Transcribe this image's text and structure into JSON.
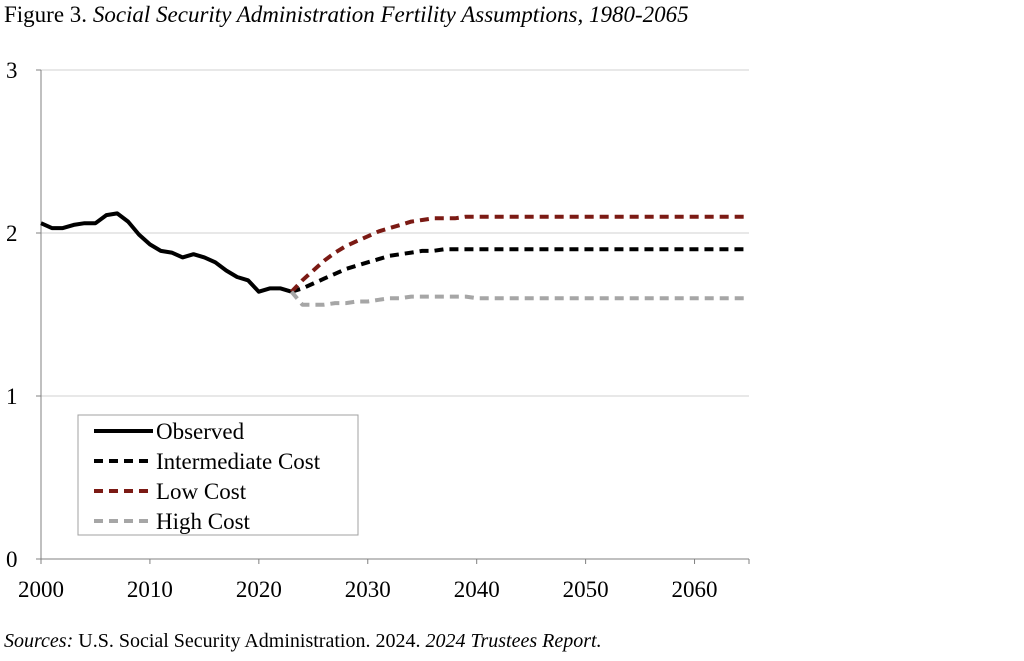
{
  "figure": {
    "label": "Figure 3.",
    "title": "Social Security Administration Fertility Assumptions, 1980-2065"
  },
  "source": {
    "prefix": "Sources:",
    "text": "U.S. Social Security Administration. 2024.",
    "report": "2024 Trustees Report."
  },
  "colors": {
    "observed": "#000000",
    "intermediate": "#000000",
    "low": "#7b1a14",
    "high": "#a6a6a6",
    "grid": "#d0d0d0",
    "axis": "#808080"
  },
  "chart_data": {
    "type": "line",
    "title": "Social Security Administration Fertility Assumptions, 1980-2065",
    "xlabel": "",
    "ylabel": "",
    "xlim": [
      2000,
      2065
    ],
    "ylim": [
      0,
      3
    ],
    "x_ticks": [
      2000,
      2010,
      2020,
      2030,
      2040,
      2050,
      2060
    ],
    "y_ticks": [
      0,
      1,
      2,
      3
    ],
    "grid": true,
    "legend_position": "bottom-left",
    "series": [
      {
        "name": "Observed",
        "style": "solid",
        "color": "#000000",
        "x": [
          2000,
          2001,
          2002,
          2003,
          2004,
          2005,
          2006,
          2007,
          2008,
          2009,
          2010,
          2011,
          2012,
          2013,
          2014,
          2015,
          2016,
          2017,
          2018,
          2019,
          2020,
          2021,
          2022,
          2023
        ],
        "y": [
          2.06,
          2.03,
          2.03,
          2.05,
          2.06,
          2.06,
          2.11,
          2.12,
          2.07,
          1.99,
          1.93,
          1.89,
          1.88,
          1.85,
          1.87,
          1.85,
          1.82,
          1.77,
          1.73,
          1.71,
          1.64,
          1.66,
          1.66,
          1.64
        ]
      },
      {
        "name": "Intermediate Cost",
        "style": "dashed",
        "color": "#000000",
        "x": [
          2023,
          2024,
          2025,
          2026,
          2027,
          2028,
          2029,
          2030,
          2031,
          2032,
          2033,
          2034,
          2035,
          2036,
          2037,
          2038,
          2039,
          2040,
          2045,
          2050,
          2055,
          2060,
          2065
        ],
        "y": [
          1.64,
          1.66,
          1.69,
          1.72,
          1.75,
          1.78,
          1.8,
          1.82,
          1.84,
          1.86,
          1.87,
          1.88,
          1.89,
          1.89,
          1.9,
          1.9,
          1.9,
          1.9,
          1.9,
          1.9,
          1.9,
          1.9,
          1.9
        ]
      },
      {
        "name": "Low Cost",
        "style": "dashed",
        "color": "#7b1a14",
        "x": [
          2023,
          2024,
          2025,
          2026,
          2027,
          2028,
          2029,
          2030,
          2031,
          2032,
          2033,
          2034,
          2035,
          2036,
          2037,
          2038,
          2039,
          2040,
          2045,
          2050,
          2055,
          2060,
          2065
        ],
        "y": [
          1.64,
          1.71,
          1.77,
          1.83,
          1.88,
          1.92,
          1.95,
          1.98,
          2.01,
          2.03,
          2.05,
          2.07,
          2.08,
          2.09,
          2.09,
          2.09,
          2.1,
          2.1,
          2.1,
          2.1,
          2.1,
          2.1,
          2.1
        ]
      },
      {
        "name": "High Cost",
        "style": "dashed",
        "color": "#a6a6a6",
        "x": [
          2023,
          2024,
          2025,
          2026,
          2027,
          2028,
          2029,
          2030,
          2031,
          2032,
          2033,
          2034,
          2035,
          2036,
          2037,
          2038,
          2039,
          2040,
          2045,
          2050,
          2055,
          2060,
          2065
        ],
        "y": [
          1.64,
          1.56,
          1.56,
          1.56,
          1.57,
          1.57,
          1.58,
          1.58,
          1.59,
          1.6,
          1.6,
          1.61,
          1.61,
          1.61,
          1.61,
          1.61,
          1.61,
          1.6,
          1.6,
          1.6,
          1.6,
          1.6,
          1.6
        ]
      }
    ]
  }
}
